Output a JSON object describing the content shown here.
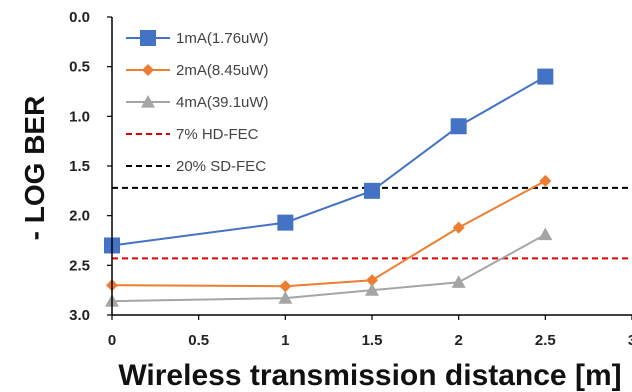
{
  "chart_data": {
    "type": "line",
    "xlabel": "Wireless transmission distance [m]",
    "ylabel": "- LOG BER",
    "xlim": [
      0,
      3
    ],
    "ylim": [
      0,
      3
    ],
    "y_reversed": true,
    "xticks": [
      "0",
      "0.5",
      "1",
      "1.5",
      "2",
      "2.5",
      "3"
    ],
    "yticks": [
      "0.0",
      "0.5",
      "1.0",
      "1.5",
      "2.0",
      "2.5",
      "3.0"
    ],
    "grid": false,
    "legend_position": "top-left",
    "series": [
      {
        "name": "1mA(1.76uW)",
        "marker": "square",
        "color": "#4472C4",
        "x": [
          0,
          1,
          1.5,
          2,
          2.5
        ],
        "y": [
          2.3,
          2.07,
          1.75,
          1.1,
          0.6
        ]
      },
      {
        "name": "2mA(8.45uW)",
        "marker": "diamond",
        "color": "#ED7D31",
        "x": [
          0,
          1,
          1.5,
          2,
          2.5
        ],
        "y": [
          2.7,
          2.71,
          2.65,
          2.12,
          1.65
        ]
      },
      {
        "name": "4mA(39.1uW)",
        "marker": "triangle",
        "color": "#A5A5A5",
        "x": [
          0,
          1,
          1.5,
          2,
          2.5
        ],
        "y": [
          2.86,
          2.83,
          2.75,
          2.67,
          2.19
        ]
      }
    ],
    "reference_lines": [
      {
        "name": "7% HD-FEC",
        "y": 2.43,
        "color": "#E00000",
        "style": "dashed"
      },
      {
        "name": "20% SD-FEC",
        "y": 1.72,
        "color": "#000000",
        "style": "dashed"
      }
    ]
  }
}
